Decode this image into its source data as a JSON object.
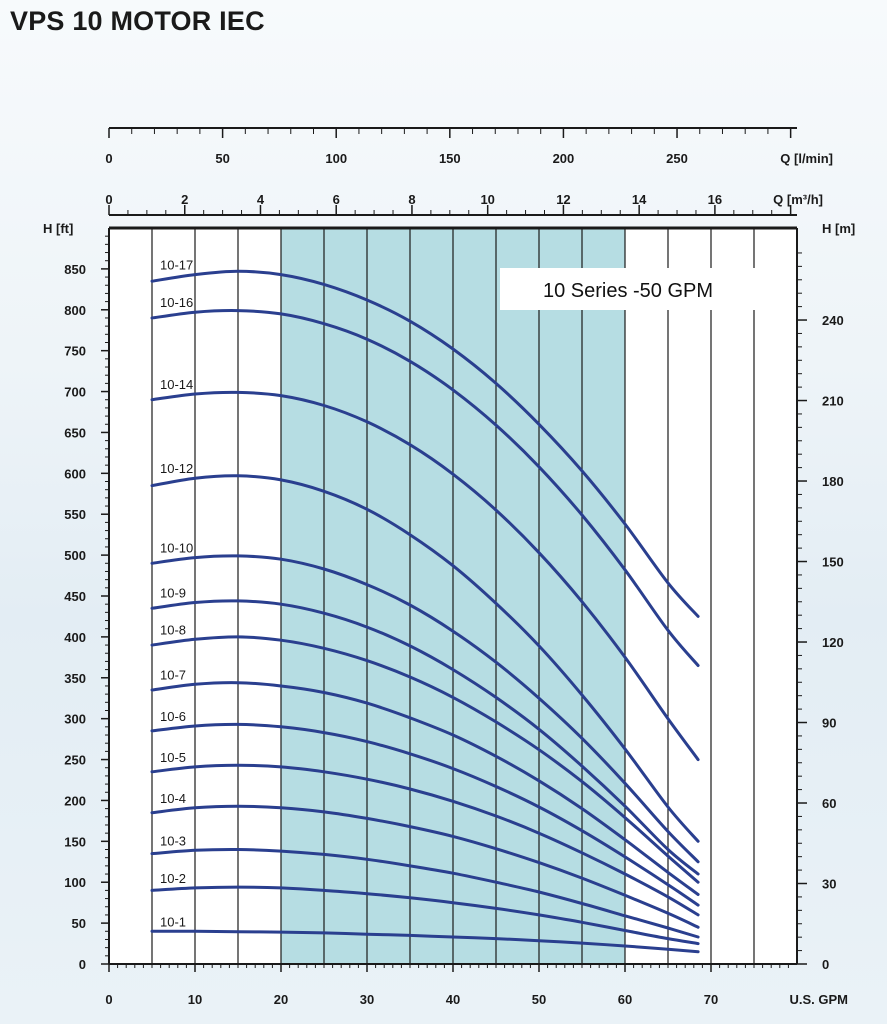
{
  "title": "VPS 10 MOTOR IEC",
  "colors": {
    "curve": "#2a3f8f",
    "highlight": "#b6dde3",
    "grid": "#1a1a1a",
    "plot_bg": "#ffffff"
  },
  "chart_data": {
    "type": "line",
    "title": "VPS 10 MOTOR IEC",
    "annotation": "10 Series -50 GPM",
    "grid": true,
    "highlight_range_gpm": [
      20,
      60
    ],
    "x_axis_bottom": {
      "label": "U.S. GPM",
      "range": [
        0,
        80
      ],
      "ticks": [
        "0",
        "10",
        "20",
        "30",
        "40",
        "50",
        "60",
        "70"
      ]
    },
    "x_axis_top1": {
      "label": "Q [l/min]",
      "range": [
        0,
        302.8
      ],
      "ticks": [
        "0",
        "50",
        "100",
        "150",
        "200",
        "250"
      ]
    },
    "x_axis_top2": {
      "label": "Q [m³/h]",
      "range": [
        0,
        18.17
      ],
      "ticks": [
        "0",
        "2",
        "4",
        "6",
        "8",
        "10",
        "12",
        "14",
        "16"
      ]
    },
    "y_axis_left": {
      "label": "H [ft]",
      "range": [
        0,
        900
      ],
      "ticks": [
        "0",
        "50",
        "100",
        "150",
        "200",
        "250",
        "300",
        "350",
        "400",
        "450",
        "500",
        "550",
        "600",
        "650",
        "700",
        "750",
        "800",
        "850"
      ]
    },
    "y_axis_right": {
      "label": "H [m]",
      "range": [
        0,
        274.3
      ],
      "ticks": [
        "0",
        "30",
        "60",
        "90",
        "120",
        "150",
        "180",
        "210",
        "240"
      ]
    },
    "series": [
      {
        "name": "10-1",
        "x": [
          5,
          10,
          15,
          20,
          25,
          30,
          35,
          40,
          45,
          50,
          55,
          60,
          65,
          68.5
        ],
        "y": [
          40,
          40,
          39.5,
          39,
          38,
          36.5,
          35,
          33,
          31,
          28.5,
          25.5,
          22,
          18,
          15
        ]
      },
      {
        "name": "10-2",
        "x": [
          5,
          10,
          15,
          20,
          25,
          30,
          35,
          40,
          45,
          50,
          55,
          60,
          65,
          68.5
        ],
        "y": [
          90,
          93,
          94,
          93,
          90,
          86,
          81,
          75,
          68,
          60,
          51,
          41,
          31,
          25
        ]
      },
      {
        "name": "10-3",
        "x": [
          5,
          10,
          15,
          20,
          25,
          30,
          35,
          40,
          45,
          50,
          55,
          60,
          65,
          68.5
        ],
        "y": [
          135,
          139,
          140,
          138,
          134,
          128,
          120,
          111,
          100,
          88,
          74,
          59,
          44,
          33
        ]
      },
      {
        "name": "10-4",
        "x": [
          5,
          10,
          15,
          20,
          25,
          30,
          35,
          40,
          45,
          50,
          55,
          60,
          65,
          68.5
        ],
        "y": [
          185,
          191,
          193,
          191,
          186,
          178,
          168,
          156,
          141,
          124,
          105,
          84,
          62,
          45
        ]
      },
      {
        "name": "10-5",
        "x": [
          5,
          10,
          15,
          20,
          25,
          30,
          35,
          40,
          45,
          50,
          55,
          60,
          65,
          68.5
        ],
        "y": [
          235,
          241,
          243,
          241,
          235,
          226,
          214,
          199,
          181,
          160,
          136,
          110,
          82,
          60
        ]
      },
      {
        "name": "10-6",
        "x": [
          5,
          10,
          15,
          20,
          25,
          30,
          35,
          40,
          45,
          50,
          55,
          60,
          65,
          68.5
        ],
        "y": [
          285,
          291,
          293,
          290,
          283,
          272,
          257,
          239,
          217,
          192,
          163,
          131,
          97,
          72
        ]
      },
      {
        "name": "10-7",
        "x": [
          5,
          10,
          15,
          20,
          25,
          30,
          35,
          40,
          45,
          50,
          55,
          60,
          65,
          68.5
        ],
        "y": [
          335,
          342,
          344,
          340,
          332,
          319,
          301,
          280,
          254,
          224,
          190,
          152,
          112,
          85
        ]
      },
      {
        "name": "10-8",
        "x": [
          5,
          10,
          15,
          20,
          25,
          30,
          35,
          40,
          45,
          50,
          55,
          60,
          65,
          68.5
        ],
        "y": [
          390,
          397,
          400,
          396,
          386,
          371,
          351,
          326,
          296,
          262,
          223,
          179,
          132,
          100
        ]
      },
      {
        "name": "10-9",
        "x": [
          5,
          10,
          15,
          20,
          25,
          30,
          35,
          40,
          45,
          50,
          55,
          60,
          65,
          68.5
        ],
        "y": [
          435,
          442,
          444,
          440,
          429,
          412,
          389,
          360,
          326,
          287,
          242,
          193,
          140,
          110
        ]
      },
      {
        "name": "10-10",
        "x": [
          5,
          10,
          15,
          20,
          25,
          30,
          35,
          40,
          45,
          50,
          55,
          60,
          65,
          68.5
        ],
        "y": [
          490,
          497,
          499,
          495,
          483,
          464,
          439,
          407,
          369,
          325,
          276,
          221,
          162,
          125
        ]
      },
      {
        "name": "10-12",
        "x": [
          5,
          10,
          15,
          20,
          25,
          30,
          35,
          40,
          45,
          50,
          55,
          60,
          65,
          68.5
        ],
        "y": [
          585,
          594,
          597,
          592,
          578,
          556,
          525,
          487,
          441,
          389,
          329,
          263,
          192,
          150
        ]
      },
      {
        "name": "10-14",
        "x": [
          5,
          10,
          15,
          20,
          25,
          30,
          35,
          40,
          45,
          50,
          55,
          60,
          65,
          68.5
        ],
        "y": [
          690,
          697,
          699,
          695,
          683,
          663,
          635,
          599,
          555,
          503,
          443,
          375,
          300,
          250
        ]
      },
      {
        "name": "10-16",
        "x": [
          5,
          10,
          15,
          20,
          25,
          30,
          35,
          40,
          45,
          50,
          55,
          60,
          65,
          68.5
        ],
        "y": [
          790,
          797,
          799,
          795,
          783,
          764,
          737,
          702,
          659,
          608,
          549,
          482,
          408,
          365
        ]
      },
      {
        "name": "10-17",
        "x": [
          5,
          10,
          15,
          20,
          25,
          30,
          35,
          40,
          45,
          50,
          55,
          60,
          65,
          68.5
        ],
        "y": [
          835,
          843,
          847,
          843,
          831,
          812,
          786,
          752,
          710,
          660,
          603,
          538,
          466,
          425
        ]
      }
    ]
  }
}
